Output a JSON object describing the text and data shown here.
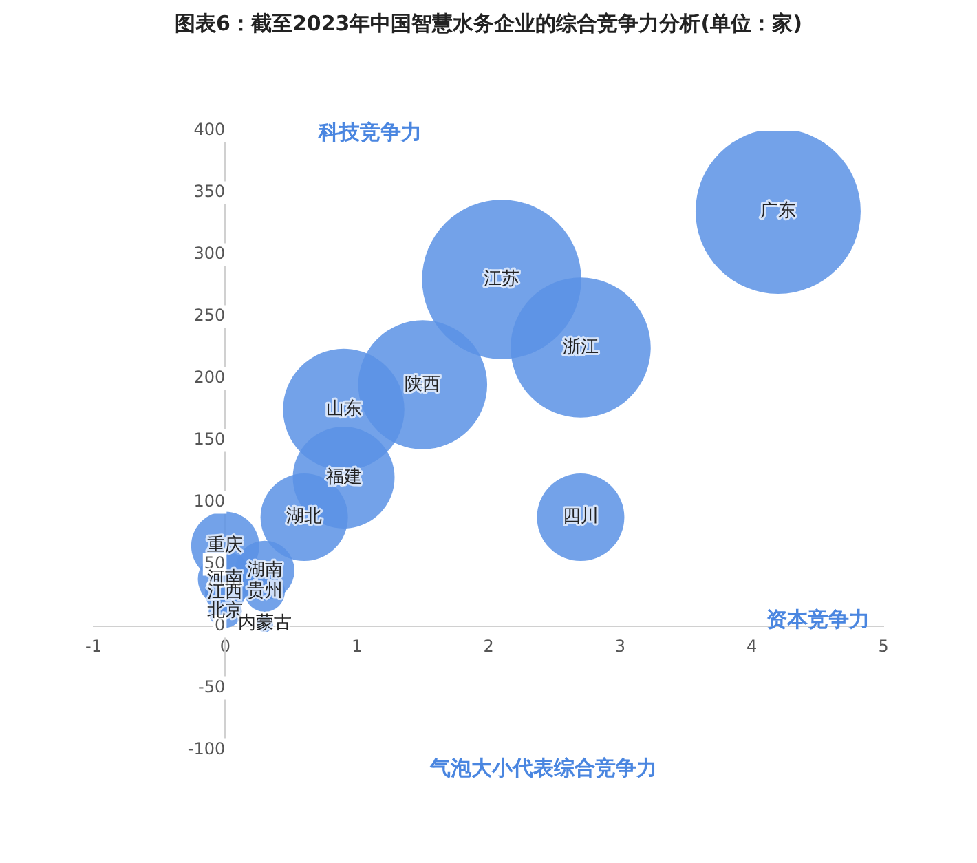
{
  "chart_data": {
    "type": "bubble",
    "title": "图表6：截至2023年中国智慧水务企业的综合竞争力分析(单位：家)",
    "xlabel": "资本竞争力",
    "ylabel": "科技竞争力",
    "x": [
      4.2,
      2.1,
      2.7,
      1.5,
      0.9,
      0.9,
      0.6,
      2.7,
      0,
      0.3,
      0,
      0.3,
      0,
      0,
      0.3
    ],
    "series": [
      {
        "color": "#5b92e5",
        "values": [
          335,
          280,
          225,
          195,
          175,
          120,
          88,
          88,
          65,
          45,
          38,
          28,
          27,
          12,
          2
        ],
        "sizes": [
          1,
          0.93,
          0.72,
          0.61,
          0.54,
          0.38,
          0.28,
          0.28,
          0.17,
          0.13,
          0.11,
          0.06,
          0.06,
          0.04,
          0.01
        ]
      }
    ],
    "xlim": [
      -1,
      5
    ],
    "xticks": [
      -1,
      0,
      1,
      2,
      3,
      4,
      5
    ],
    "ylim": [
      -100,
      400
    ],
    "yticks": [
      -100,
      -50,
      0,
      50,
      100,
      150,
      200,
      250,
      300,
      350,
      400
    ],
    "grid": false,
    "legend": false,
    "annotations": [
      {
        "text": "广东",
        "x": 4.2,
        "y": 335
      },
      {
        "text": "江苏",
        "x": 2.1,
        "y": 280
      },
      {
        "text": "浙江",
        "x": 2.7,
        "y": 225
      },
      {
        "text": "陕西",
        "x": 1.5,
        "y": 195
      },
      {
        "text": "山东",
        "x": 0.9,
        "y": 175
      },
      {
        "text": "福建",
        "x": 0.9,
        "y": 120
      },
      {
        "text": "湖北",
        "x": 0.6,
        "y": 88
      },
      {
        "text": "四川",
        "x": 2.7,
        "y": 88
      },
      {
        "text": "重庆",
        "x": 0,
        "y": 65
      },
      {
        "text": "湖南",
        "x": 0.3,
        "y": 45
      },
      {
        "text": "河南",
        "x": 0,
        "y": 38
      },
      {
        "text": "贵州",
        "x": 0.3,
        "y": 28
      },
      {
        "text": "江西",
        "x": 0,
        "y": 27
      },
      {
        "text": "北京",
        "x": 0,
        "y": 12
      },
      {
        "text": "内蒙古",
        "x": 0.3,
        "y": 2
      },
      "气泡大小代表综合竞争力"
    ]
  }
}
